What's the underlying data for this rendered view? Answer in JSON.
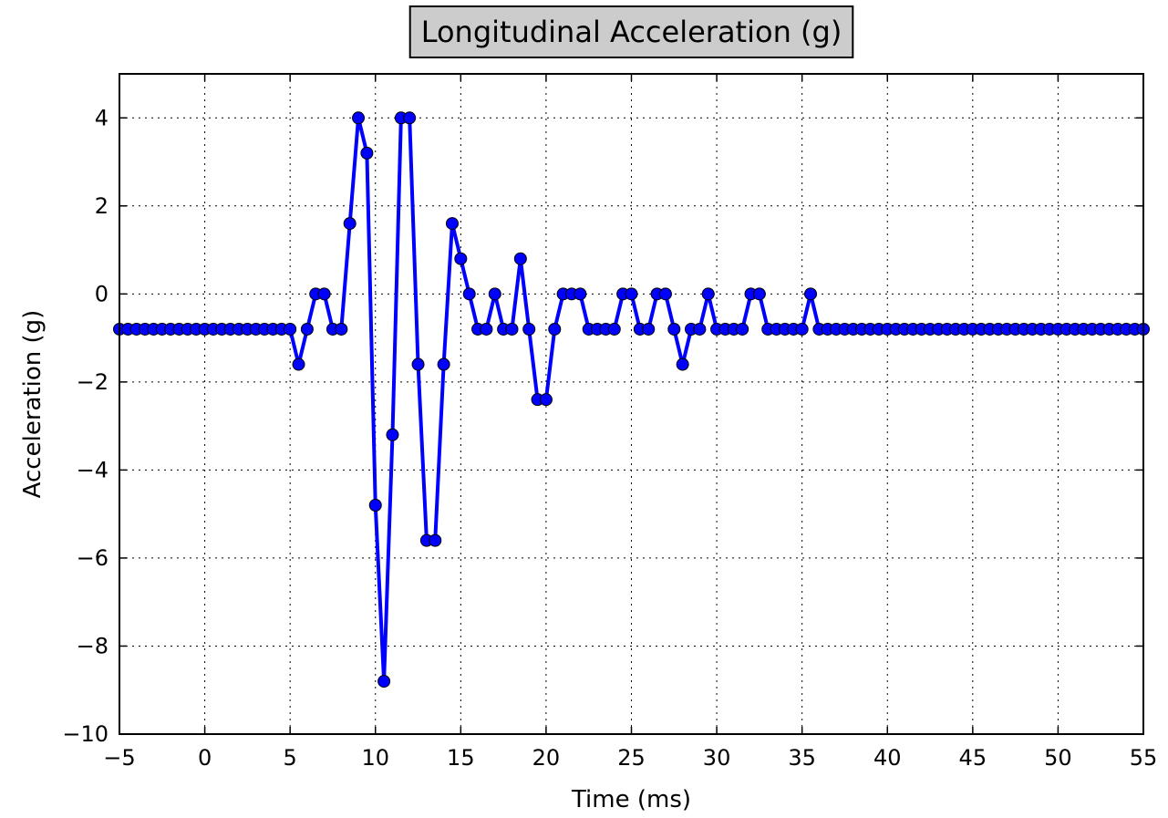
{
  "chart_data": {
    "type": "line",
    "title": "Longitudinal Acceleration (g)",
    "xlabel": "Time (ms)",
    "ylabel": "Acceleration (g)",
    "xlim": [
      -5,
      55
    ],
    "ylim": [
      -10,
      5
    ],
    "xticks": [
      -5,
      0,
      5,
      10,
      15,
      20,
      25,
      30,
      35,
      40,
      45,
      50,
      55
    ],
    "yticks": [
      -10,
      -8,
      -6,
      -4,
      -2,
      0,
      2,
      4
    ],
    "xtick_labels": [
      "−5",
      "0",
      "5",
      "10",
      "15",
      "20",
      "25",
      "30",
      "35",
      "40",
      "45",
      "50",
      "55"
    ],
    "ytick_labels": [
      "−10",
      "−8",
      "−6",
      "−4",
      "−2",
      "0",
      "2",
      "4"
    ],
    "grid": true,
    "title_box": true,
    "series": [
      {
        "color": "#0000ff",
        "marker": "circle",
        "x_start": -5,
        "x_step": 0.5,
        "values": [
          -0.8,
          -0.8,
          -0.8,
          -0.8,
          -0.8,
          -0.8,
          -0.8,
          -0.8,
          -0.8,
          -0.8,
          -0.8,
          -0.8,
          -0.8,
          -0.8,
          -0.8,
          -0.8,
          -0.8,
          -0.8,
          -0.8,
          -0.8,
          -0.8,
          -1.6,
          -0.8,
          0,
          0,
          -0.8,
          -0.8,
          1.6,
          4,
          3.2,
          -4.8,
          -8.8,
          -3.2,
          4,
          4,
          -1.6,
          -5.6,
          -5.6,
          -1.6,
          1.6,
          0.8,
          0,
          -0.8,
          -0.8,
          0,
          -0.8,
          -0.8,
          0.8,
          -0.8,
          -2.4,
          -2.4,
          -0.8,
          0,
          0,
          0,
          -0.8,
          -0.8,
          -0.8,
          -0.8,
          0,
          0,
          -0.8,
          -0.8,
          0,
          0,
          -0.8,
          -1.6,
          -0.8,
          -0.8,
          0,
          -0.8,
          -0.8,
          -0.8,
          -0.8,
          0,
          0,
          -0.8,
          -0.8,
          -0.8,
          -0.8,
          -0.8,
          0,
          -0.8,
          -0.8,
          -0.8,
          -0.8,
          -0.8,
          -0.8,
          -0.8,
          -0.8,
          -0.8,
          -0.8,
          -0.8,
          -0.8,
          -0.8,
          -0.8,
          -0.8,
          -0.8,
          -0.8,
          -0.8,
          -0.8,
          -0.8,
          -0.8,
          -0.8,
          -0.8,
          -0.8,
          -0.8,
          -0.8,
          -0.8,
          -0.8,
          -0.8,
          -0.8,
          -0.8,
          -0.8,
          -0.8,
          -0.8,
          -0.8,
          -0.8,
          -0.8,
          -0.8,
          -0.8
        ]
      }
    ]
  }
}
